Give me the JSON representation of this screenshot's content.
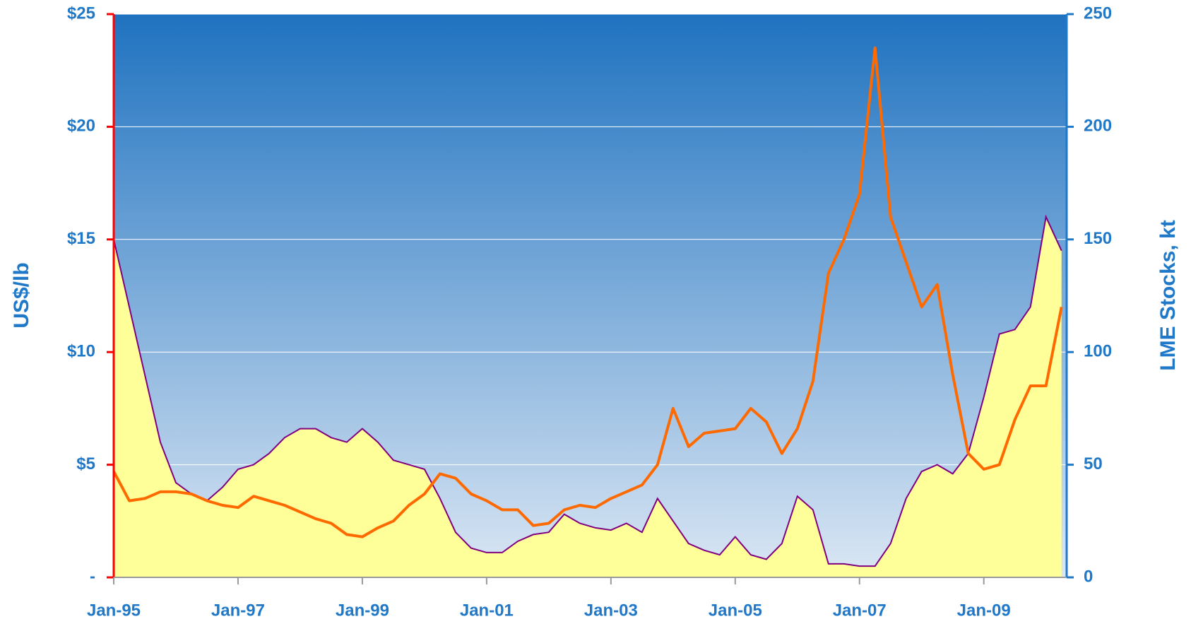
{
  "chart_data": {
    "type": "line_area",
    "ylabel": "US$/lb",
    "y2label": "LME Stocks, kt",
    "grid": true,
    "grid_color": "#ffffff",
    "background": [
      "#1f72c0",
      "#dbe7f4"
    ],
    "left_axis_color": "#ff0000",
    "right_axis_color": "#1f78c8",
    "xlim": [
      "1995-01",
      "2010-05"
    ],
    "xticks": [
      {
        "value": "1995-01",
        "label": "Jan-95"
      },
      {
        "value": "1997-01",
        "label": "Jan-97"
      },
      {
        "value": "1999-01",
        "label": "Jan-99"
      },
      {
        "value": "2001-01",
        "label": "Jan-01"
      },
      {
        "value": "2003-01",
        "label": "Jan-03"
      },
      {
        "value": "2005-01",
        "label": "Jan-05"
      },
      {
        "value": "2007-01",
        "label": "Jan-07"
      },
      {
        "value": "2009-01",
        "label": "Jan-09"
      }
    ],
    "ylim": [
      0,
      25
    ],
    "yticks": [
      {
        "value": 0,
        "label": "-"
      },
      {
        "value": 5,
        "label": "$5"
      },
      {
        "value": 10,
        "label": "$10"
      },
      {
        "value": 15,
        "label": "$15"
      },
      {
        "value": 20,
        "label": "$20"
      },
      {
        "value": 25,
        "label": "$25"
      }
    ],
    "y2lim": [
      0,
      250
    ],
    "y2ticks": [
      0,
      50,
      100,
      150,
      200,
      250
    ],
    "x": [
      "1995-01",
      "1995-04",
      "1995-07",
      "1995-10",
      "1996-01",
      "1996-04",
      "1996-07",
      "1996-10",
      "1997-01",
      "1997-04",
      "1997-07",
      "1997-10",
      "1998-01",
      "1998-04",
      "1998-07",
      "1998-10",
      "1999-01",
      "1999-04",
      "1999-07",
      "1999-10",
      "2000-01",
      "2000-04",
      "2000-07",
      "2000-10",
      "2001-01",
      "2001-04",
      "2001-07",
      "2001-10",
      "2002-01",
      "2002-04",
      "2002-07",
      "2002-10",
      "2003-01",
      "2003-04",
      "2003-07",
      "2003-10",
      "2004-01",
      "2004-04",
      "2004-07",
      "2004-10",
      "2005-01",
      "2005-04",
      "2005-07",
      "2005-10",
      "2006-01",
      "2006-04",
      "2006-07",
      "2006-10",
      "2007-01",
      "2007-04",
      "2007-07",
      "2007-10",
      "2008-01",
      "2008-04",
      "2008-07",
      "2008-10",
      "2009-01",
      "2009-04",
      "2009-07",
      "2009-10",
      "2010-01",
      "2010-04"
    ],
    "series": [
      {
        "kind": "area",
        "axis": "y2",
        "color": "#ffff99",
        "line_color": "#800080",
        "values": [
          150,
          120,
          90,
          60,
          42,
          37,
          34,
          40,
          48,
          50,
          55,
          62,
          66,
          66,
          62,
          60,
          66,
          60,
          52,
          50,
          48,
          35,
          20,
          13,
          11,
          11,
          16,
          19,
          20,
          28,
          24,
          22,
          21,
          24,
          20,
          35,
          25,
          15,
          12,
          10,
          18,
          10,
          8,
          15,
          36,
          30,
          6,
          6,
          5,
          5,
          15,
          35,
          47,
          50,
          46,
          55,
          80,
          108,
          110,
          120,
          160,
          145
        ]
      },
      {
        "kind": "line",
        "axis": "y",
        "color": "#ff6a00",
        "values": [
          4.7,
          3.4,
          3.5,
          3.8,
          3.8,
          3.7,
          3.4,
          3.2,
          3.1,
          3.6,
          3.4,
          3.2,
          2.9,
          2.6,
          2.4,
          1.9,
          1.8,
          2.2,
          2.5,
          3.2,
          3.7,
          4.6,
          4.4,
          3.7,
          3.4,
          3.0,
          3.0,
          2.3,
          2.4,
          3.0,
          3.2,
          3.1,
          3.5,
          3.8,
          4.1,
          5.0,
          7.5,
          5.8,
          6.4,
          6.5,
          6.6,
          7.5,
          6.9,
          5.5,
          6.6,
          8.7,
          13.5,
          15.0,
          17.0,
          23.5,
          16.0,
          14.0,
          12.0,
          13.0,
          9.0,
          5.5,
          4.8,
          5.0,
          7.0,
          8.5,
          8.5,
          12.0
        ]
      }
    ]
  }
}
